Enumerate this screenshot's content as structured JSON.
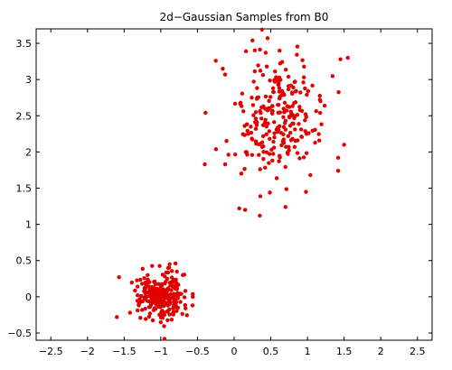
{
  "chart_data": {
    "type": "scatter",
    "title": "2d−Gaussian Samples from B0",
    "xlabel": "",
    "ylabel": "",
    "xlim": [
      -2.7,
      2.7
    ],
    "ylim": [
      -0.6,
      3.7
    ],
    "xticks": [
      -2.5,
      -2,
      -1.5,
      -1,
      -0.5,
      0,
      0.5,
      1,
      1.5,
      2,
      2.5
    ],
    "xtick_labels": [
      "−2.5",
      "−2",
      "−1.5",
      "−1",
      "−0.5",
      "0",
      "0.5",
      "1",
      "1.5",
      "2",
      "2.5"
    ],
    "yticks": [
      -0.5,
      0,
      0.5,
      1,
      1.5,
      2,
      2.5,
      3,
      3.5
    ],
    "ytick_labels": [
      "−0.5",
      "0",
      "0.5",
      "1",
      "1.5",
      "2",
      "2.5",
      "3",
      "3.5"
    ],
    "grid": false,
    "marker_color": "#e00000",
    "clusters": [
      {
        "n": 250,
        "mean": [
          -0.98,
          0.01
        ],
        "std": [
          0.16,
          0.16
        ],
        "seed": 7
      },
      {
        "n": 250,
        "mean": [
          0.52,
          2.48
        ],
        "std": [
          0.35,
          0.42
        ],
        "seed": 13
      }
    ],
    "series": [
      {
        "points": [
          [
            0.38,
            3.69
          ],
          [
            1.55,
            3.3
          ],
          [
            1.45,
            3.28
          ],
          [
            0.62,
            3.4
          ],
          [
            0.25,
            3.54
          ],
          [
            -0.25,
            3.26
          ],
          [
            0.15,
            1.2
          ],
          [
            0.35,
            1.12
          ],
          [
            0.07,
            1.22
          ],
          [
            0.7,
            1.24
          ],
          [
            -0.4,
            1.83
          ],
          [
            1.5,
            2.1
          ],
          [
            0.98,
            1.45
          ],
          [
            -1.57,
            0.27
          ],
          [
            -1.6,
            -0.28
          ],
          [
            -0.95,
            -0.58
          ],
          [
            -0.88,
            0.45
          ],
          [
            -0.8,
            0.46
          ],
          [
            -1.42,
            -0.22
          ],
          [
            -0.7,
            0.3
          ]
        ]
      }
    ]
  }
}
